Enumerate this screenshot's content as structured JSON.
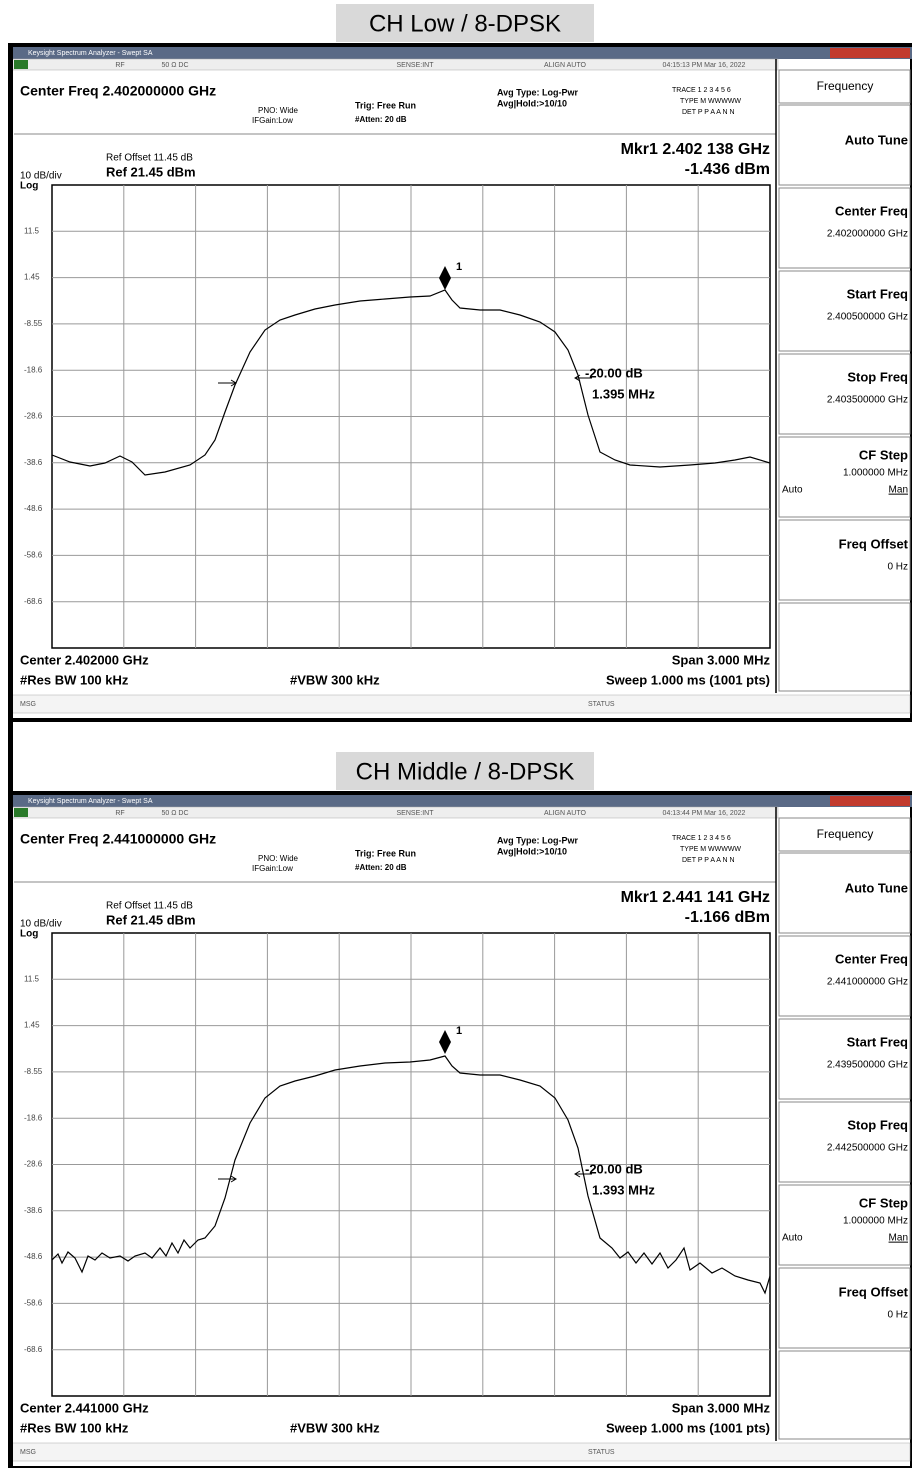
{
  "panels": [
    {
      "caption": "CH Low / 8-DPSK",
      "window_title": "Keysight Spectrum Analyzer - Swept SA",
      "status": [
        "RF",
        "50 Ω  DC",
        "SENSE:INT",
        "ALIGN AUTO",
        "04:15:13 PM Mar 16, 2022"
      ],
      "center_freq": "Center Freq 2.402000000 GHz",
      "pno": "PNO: Wide",
      "ifgain": "IFGain:Low",
      "trig": "Trig: Free Run",
      "atten": "#Atten: 20 dB",
      "avg_type": "Avg Type: Log-Pwr",
      "avg_hold": "Avg|Hold:>10/10",
      "trace": "TRACE 1 2 3 4 5 6",
      "trace_type": "TYPE M WWWWW",
      "trace_det": "DET P P A A N N",
      "marker": "Mkr1 2.402 138 GHz",
      "marker_value": "-1.436 dBm",
      "ref_offset": "Ref Offset 11.45 dB",
      "scale": "10 dB/div",
      "ref_level": "Ref 21.45 dBm",
      "log": "Log",
      "y_labels": [
        "11.5",
        "1.45",
        "-8.55",
        "-18.6",
        "-28.6",
        "-38.6",
        "-48.6",
        "-58.6",
        "-68.6"
      ],
      "marker_number": "1",
      "ndb": "-20.00 dB",
      "bandwidth": "1.395 MHz",
      "footer_center": "Center 2.402000 GHz",
      "footer_span": "Span 3.000 MHz",
      "footer_rbw": "#Res BW 100 kHz",
      "footer_vbw": "#VBW 300 kHz",
      "footer_sweep": "Sweep  1.000 ms (1001 pts)",
      "msg": "MSG",
      "status_label": "STATUS",
      "menu": "Frequency",
      "auto_tune": "Auto Tune",
      "softkeys": [
        {
          "label": "Center Freq",
          "value": "2.402000000 GHz"
        },
        {
          "label": "Start Freq",
          "value": "2.400500000 GHz"
        },
        {
          "label": "Stop Freq",
          "value": "2.403500000 GHz"
        }
      ],
      "cf_step": "CF Step",
      "cf_step_value": "1.000000 MHz",
      "auto": "Auto",
      "man": "Man",
      "freq_offset": "Freq Offset",
      "freq_offset_value": "0 Hz"
    },
    {
      "caption": "CH Middle / 8-DPSK",
      "window_title": "Keysight Spectrum Analyzer - Swept SA",
      "status": [
        "RF",
        "50 Ω  DC",
        "SENSE:INT",
        "ALIGN AUTO",
        "04:13:44 PM Mar 16, 2022"
      ],
      "center_freq": "Center Freq 2.441000000 GHz",
      "pno": "PNO: Wide",
      "ifgain": "IFGain:Low",
      "trig": "Trig: Free Run",
      "atten": "#Atten: 20 dB",
      "avg_type": "Avg Type: Log-Pwr",
      "avg_hold": "Avg|Hold:>10/10",
      "trace": "TRACE 1 2 3 4 5 6",
      "trace_type": "TYPE M WWWWW",
      "trace_det": "DET P P A A N N",
      "marker": "Mkr1 2.441 141 GHz",
      "marker_value": "-1.166 dBm",
      "ref_offset": "Ref Offset 11.45 dB",
      "scale": "10 dB/div",
      "ref_level": "Ref 21.45 dBm",
      "log": "Log",
      "y_labels": [
        "11.5",
        "1.45",
        "-8.55",
        "-18.6",
        "-28.6",
        "-38.6",
        "-48.6",
        "-58.6",
        "-68.6"
      ],
      "marker_number": "1",
      "ndb": "-20.00 dB",
      "bandwidth": "1.393 MHz",
      "footer_center": "Center 2.441000 GHz",
      "footer_span": "Span 3.000 MHz",
      "footer_rbw": "#Res BW 100 kHz",
      "footer_vbw": "#VBW 300 kHz",
      "footer_sweep": "Sweep  1.000 ms (1001 pts)",
      "msg": "MSG",
      "status_label": "STATUS",
      "menu": "Frequency",
      "auto_tune": "Auto Tune",
      "softkeys": [
        {
          "label": "Center Freq",
          "value": "2.441000000 GHz"
        },
        {
          "label": "Start Freq",
          "value": "2.439500000 GHz"
        },
        {
          "label": "Stop Freq",
          "value": "2.442500000 GHz"
        }
      ],
      "cf_step": "CF Step",
      "cf_step_value": "1.000000 MHz",
      "auto": "Auto",
      "man": "Man",
      "freq_offset": "Freq Offset",
      "freq_offset_value": "0 Hz"
    }
  ]
}
